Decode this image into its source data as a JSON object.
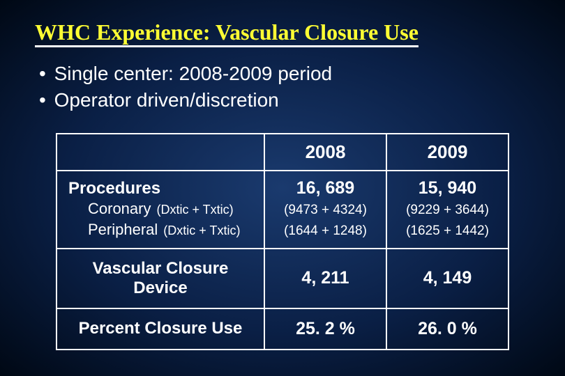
{
  "title": "WHC Experience:  Vascular Closure Use",
  "bullets": [
    "Single center:  2008-2009 period",
    "Operator driven/discretion"
  ],
  "table": {
    "years": [
      "2008",
      "2009"
    ],
    "procedures": {
      "label": "Procedures",
      "sub1_label": "Coronary",
      "sub1_note": "(Dxtic + Txtic)",
      "sub2_label": "Peripheral",
      "sub2_note": "(Dxtic + Txtic)",
      "y2008": {
        "total": "16, 689",
        "coronary": "(9473 + 4324)",
        "peripheral": "(1644 + 1248)"
      },
      "y2009": {
        "total": "15, 940",
        "coronary": "(9229 + 3644)",
        "peripheral": "(1625 + 1442)"
      }
    },
    "vcd": {
      "label": "Vascular Closure Device",
      "y2008": "4, 211",
      "y2009": "4, 149"
    },
    "pct": {
      "label": "Percent Closure Use",
      "y2008": "25. 2 %",
      "y2009": "26. 0 %"
    }
  },
  "colors": {
    "title_color": "#ffff33",
    "text_color": "#ffffff",
    "border_color": "#ffffff",
    "bg_center": "#1a3a6e",
    "bg_edge": "#000814"
  }
}
